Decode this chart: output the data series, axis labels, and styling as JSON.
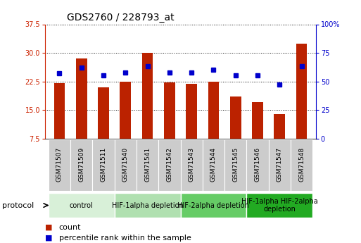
{
  "title": "GDS2760 / 228793_at",
  "samples": [
    "GSM71507",
    "GSM71509",
    "GSM71511",
    "GSM71540",
    "GSM71541",
    "GSM71542",
    "GSM71543",
    "GSM71544",
    "GSM71545",
    "GSM71546",
    "GSM71547",
    "GSM71548"
  ],
  "counts": [
    22.0,
    28.5,
    21.0,
    22.5,
    30.0,
    22.3,
    21.8,
    22.5,
    18.5,
    17.0,
    14.0,
    32.5
  ],
  "percentiles": [
    57,
    62,
    55,
    58,
    63,
    58,
    58,
    60,
    55,
    55,
    47,
    63
  ],
  "ylim_left": [
    7.5,
    37.5
  ],
  "ylim_right": [
    0,
    100
  ],
  "yticks_left": [
    7.5,
    15.0,
    22.5,
    30.0,
    37.5
  ],
  "yticks_right": [
    0,
    25,
    50,
    75,
    100
  ],
  "bar_color": "#bb2200",
  "dot_color": "#0000cc",
  "protocol_groups": [
    {
      "label": "control",
      "start": 0,
      "end": 3,
      "color": "#d8f0d8"
    },
    {
      "label": "HIF-1alpha depletion",
      "start": 3,
      "end": 6,
      "color": "#b0e0b0"
    },
    {
      "label": "HIF-2alpha depletion",
      "start": 6,
      "end": 9,
      "color": "#66cc66"
    },
    {
      "label": "HIF-1alpha HIF-2alpha\ndepletion",
      "start": 9,
      "end": 12,
      "color": "#22aa22"
    }
  ],
  "left_axis_color": "#cc2200",
  "right_axis_color": "#0000cc",
  "bar_width": 0.5,
  "dot_size": 5,
  "title_fontsize": 10,
  "tick_fontsize": 7,
  "protocol_fontsize": 7,
  "legend_fontsize": 8,
  "xtick_bg": "#cccccc",
  "xlim": [
    -0.65,
    11.65
  ]
}
